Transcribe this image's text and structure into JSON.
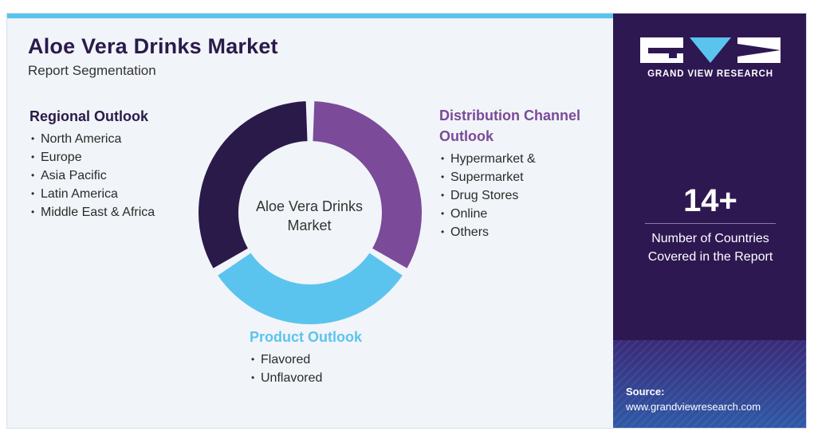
{
  "header": {
    "title": "Aloe Vera Drinks Market",
    "subtitle": "Report Segmentation"
  },
  "diagram": {
    "center_label_line1": "Aloe Vera Drinks",
    "center_label_line2": "Market",
    "segments": [
      {
        "id": "regional",
        "color": "#2a1a4a"
      },
      {
        "id": "distribution",
        "color": "#7b4a99"
      },
      {
        "id": "product",
        "color": "#5bc4ee"
      }
    ]
  },
  "regional": {
    "title": "Regional Outlook",
    "items": [
      "North America",
      "Europe",
      "Asia Pacific",
      "Latin America",
      "Middle East & Africa"
    ]
  },
  "distribution": {
    "title_line1": "Distribution Channel",
    "title_line2": "Outlook",
    "items": [
      "Hypermarket &",
      "Supermarket",
      "Drug Stores",
      "Online",
      "Others"
    ]
  },
  "product": {
    "title": "Product Outlook",
    "items": [
      "Flavored",
      "Unflavored"
    ]
  },
  "sidebar": {
    "brand": "GRAND VIEW RESEARCH",
    "stat_value": "14+",
    "stat_caption_line1": "Number of Countries",
    "stat_caption_line2": "Covered in the Report",
    "source_label": "Source:",
    "source_url": "www.grandviewresearch.com"
  },
  "colors": {
    "panel_bg": "#2e1852",
    "accent_cyan": "#5bc4ee",
    "accent_purple": "#7b4a99",
    "dark_purple": "#2a1a4a"
  }
}
